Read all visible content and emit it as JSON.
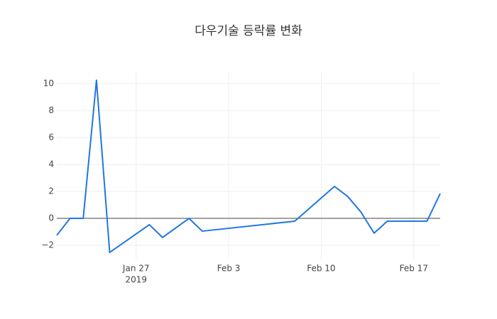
{
  "chart_data": {
    "type": "line",
    "title": "다우기술 등락률 변화",
    "x": [
      "2019-01-21",
      "2019-01-22",
      "2019-01-23",
      "2019-01-24",
      "2019-01-25",
      "2019-01-28",
      "2019-01-29",
      "2019-01-31",
      "2019-02-01",
      "2019-02-08",
      "2019-02-11",
      "2019-02-12",
      "2019-02-13",
      "2019-02-14",
      "2019-02-15",
      "2019-02-18",
      "2019-02-19"
    ],
    "series": [
      {
        "color": "#1f77e0",
        "values": [
          -1.26,
          0,
          0,
          10.26,
          -2.53,
          -0.47,
          -1.42,
          0,
          -0.95,
          -0.21,
          2.37,
          1.63,
          0.47,
          -1.1,
          -0.21,
          -0.21,
          1.84
        ]
      }
    ],
    "xlim": [
      "2019-01-21",
      "2019-02-19"
    ],
    "xticks": [
      {
        "value": "2019-01-27",
        "label": "Jan 27"
      },
      {
        "value": "2019-02-03",
        "label": "Feb 3"
      },
      {
        "value": "2019-02-10",
        "label": "Feb 10"
      },
      {
        "value": "2019-02-17",
        "label": "Feb 17"
      }
    ],
    "x_year": "2019",
    "ylim": [
      -3,
      10.95
    ],
    "yticks": [
      {
        "value": -2,
        "label": "−2"
      },
      0,
      2,
      4,
      6,
      8,
      10
    ],
    "grid": true,
    "zeroline": true
  }
}
